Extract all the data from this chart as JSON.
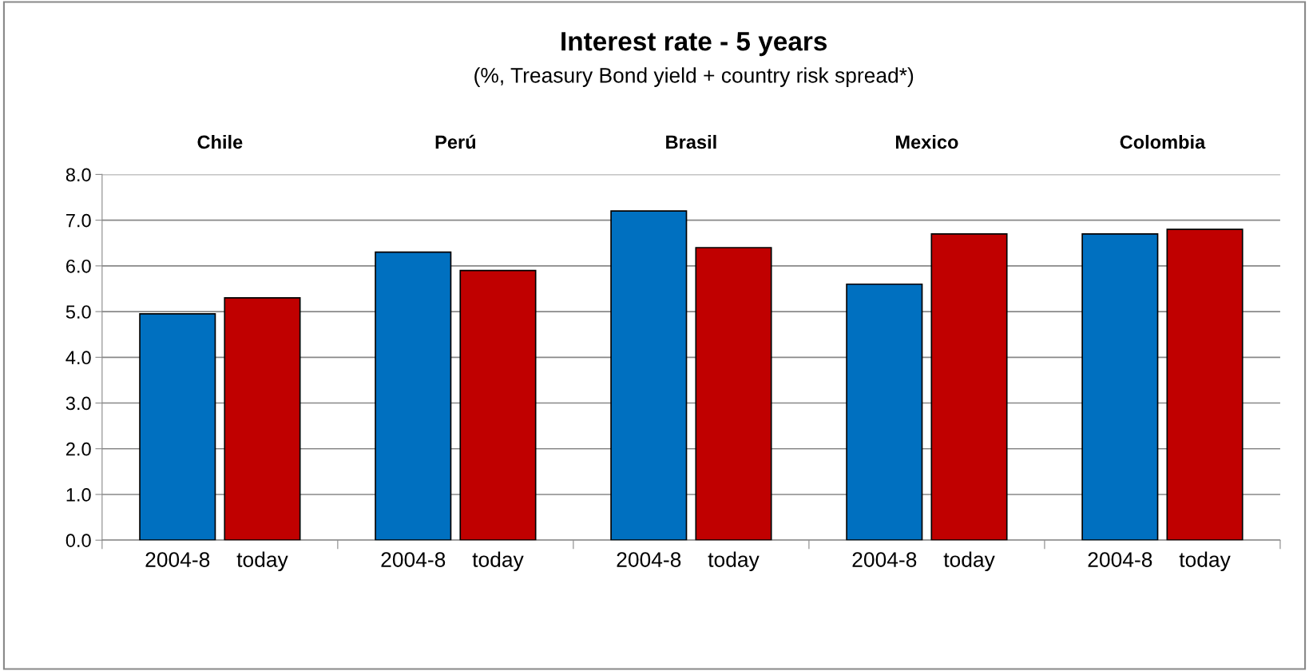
{
  "chart_data": {
    "type": "bar",
    "title": "Interest rate - 5 years",
    "subtitle": "(%, Treasury Bond yield + country risk spread*)",
    "categories": [
      "Chile",
      "Perú",
      "Brasil",
      "Mexico",
      "Colombia"
    ],
    "series": [
      {
        "name": "2004-8",
        "color": "#0070c0",
        "values": [
          4.95,
          6.3,
          7.2,
          5.6,
          6.7
        ]
      },
      {
        "name": "today",
        "color": "#c00000",
        "values": [
          5.3,
          5.9,
          6.4,
          6.7,
          6.8
        ]
      }
    ],
    "ylim": [
      0,
      8
    ],
    "yticks": [
      {
        "value": 0,
        "label": "0.0"
      },
      {
        "value": 1,
        "label": "1.0"
      },
      {
        "value": 2,
        "label": "2.0"
      },
      {
        "value": 3,
        "label": "3.0"
      },
      {
        "value": 4,
        "label": "4.0"
      },
      {
        "value": 5,
        "label": "5.0"
      },
      {
        "value": 6,
        "label": "6.0"
      },
      {
        "value": 7,
        "label": "7.0"
      },
      {
        "value": 8,
        "label": "8.0"
      }
    ],
    "grid": "y",
    "legend": false
  }
}
